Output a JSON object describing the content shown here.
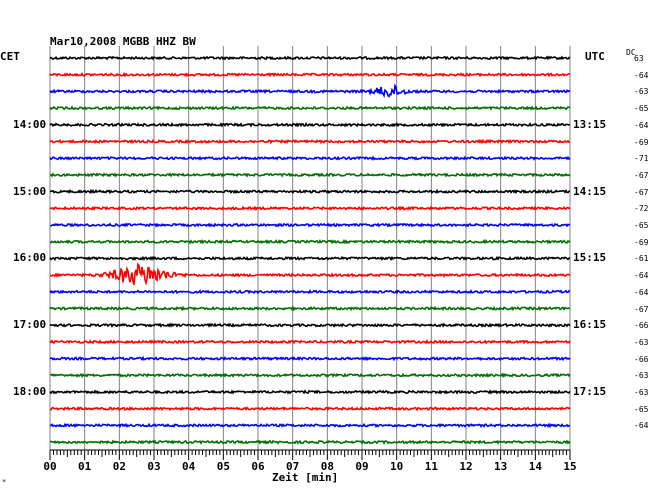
{
  "header": {
    "title": "Mar10,2008   MGBB HHZ BW",
    "left_tz": "CET",
    "right_tz": "UTC",
    "dc_label": "DC"
  },
  "colors": {
    "cycle": [
      "#000000",
      "#ff0000",
      "#0000ff",
      "#007000"
    ],
    "grid": "#808080"
  },
  "chart_data": {
    "type": "line",
    "title": "Mar10,2008   MGBB HHZ BW",
    "xlabel": "Zeit [min]",
    "xlim": [
      0,
      15
    ],
    "x_ticks": [
      "00",
      "01",
      "02",
      "03",
      "04",
      "05",
      "06",
      "07",
      "08",
      "09",
      "10",
      "11",
      "12",
      "13",
      "14",
      "15"
    ],
    "left_hour_labels": [
      "14:00",
      "15:00",
      "16:00",
      "17:00",
      "18:00"
    ],
    "right_hour_labels": [
      "13:15",
      "14:15",
      "15:15",
      "16:15",
      "17:15"
    ],
    "hour_label_trace_index": [
      4,
      8,
      12,
      16,
      20
    ],
    "dc_offsets": [
      "63",
      "-64",
      "-63",
      "-65",
      "-64",
      "-69",
      "-71",
      "-67",
      "-67",
      "-72",
      "-65",
      "-69",
      "-61",
      "-64",
      "-64",
      "-67",
      "-66",
      "-63",
      "-66",
      "-63",
      "-63",
      "-65",
      "-64"
    ],
    "trace_count": 24,
    "events": [
      {
        "trace": 2,
        "minute": 9.8,
        "amplitude": "medium"
      },
      {
        "trace": 13,
        "minute": 2.6,
        "amplitude": "large"
      }
    ]
  }
}
